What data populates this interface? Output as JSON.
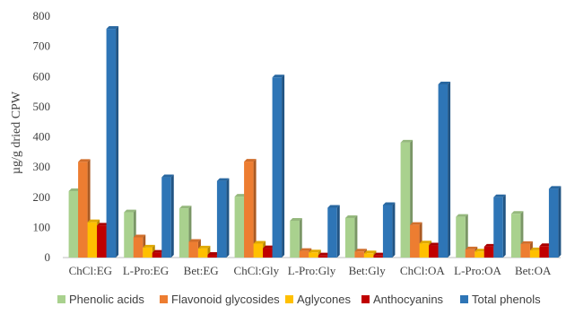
{
  "chart_data": {
    "type": "bar",
    "title": "",
    "xlabel": "",
    "ylabel": "µg/g dried CPW",
    "ylim": [
      0,
      800
    ],
    "yticks": [
      0,
      100,
      200,
      300,
      400,
      500,
      600,
      700,
      800
    ],
    "grid": false,
    "legend_position": "bottom",
    "categories": [
      "ChCl:EG",
      "L-Pro:EG",
      "Bet:EG",
      "ChCl:Gly",
      "L-Pro:Gly",
      "Bet:Gly",
      "ChCl:OA",
      "L-Pro:OA",
      "Bet:OA"
    ],
    "series": [
      {
        "name": "Phenolic acids",
        "color": "#a9d18e",
        "values": [
          220,
          150,
          163,
          202,
          122,
          131,
          381,
          135,
          145
        ]
      },
      {
        "name": "Flavonoid glycosides",
        "color": "#ed7d31",
        "values": [
          317,
          67,
          52,
          318,
          22,
          20,
          108,
          27,
          45
        ]
      },
      {
        "name": "Aglycones",
        "color": "#ffc000",
        "values": [
          117,
          33,
          30,
          46,
          17,
          14,
          47,
          20,
          24
        ]
      },
      {
        "name": "Anthocyanins",
        "color": "#c00000",
        "values": [
          106,
          16,
          9,
          31,
          7,
          7,
          40,
          36,
          38
        ]
      },
      {
        "name": "Total phenols",
        "color": "#2e75b6",
        "values": [
          758,
          266,
          254,
          597,
          165,
          174,
          574,
          200,
          228
        ]
      }
    ]
  }
}
